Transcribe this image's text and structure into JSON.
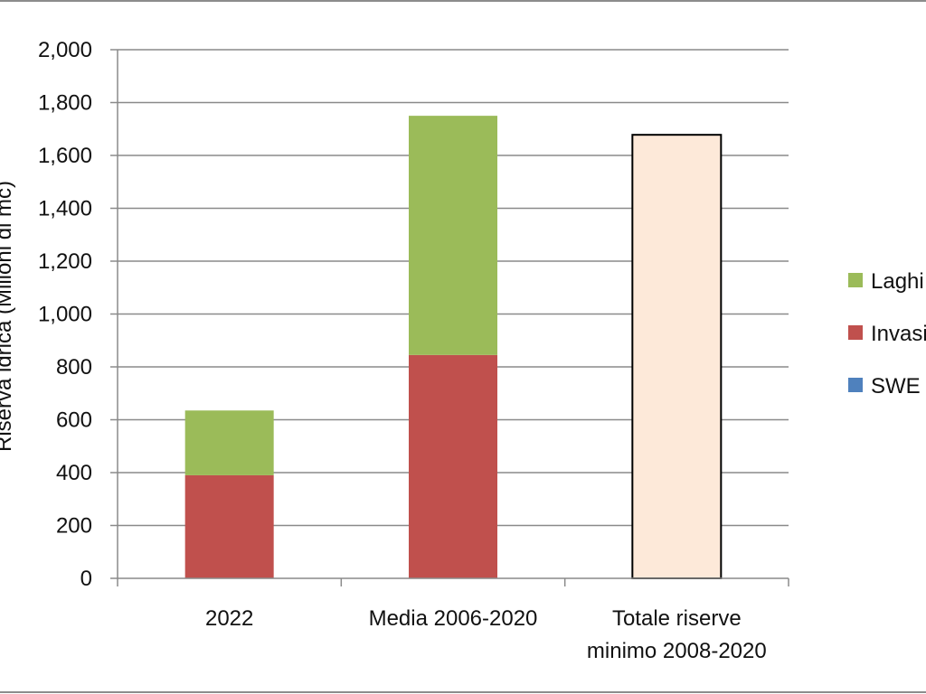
{
  "chart_data": {
    "type": "bar",
    "stacked": true,
    "categories": [
      "2022",
      "Media 2006-2020",
      "Totale riserve\nminimo 2008-2020"
    ],
    "ylabel": "Riserva idrica (Milioni di mc)",
    "ylim": [
      0,
      2000
    ],
    "yticks": [
      0,
      200,
      400,
      600,
      800,
      1000,
      1200,
      1400,
      1600,
      1800,
      2000
    ],
    "ytick_labels": [
      "0",
      "200",
      "400",
      "600",
      "800",
      "1,000",
      "1,200",
      "1,400",
      "1,600",
      "1,800",
      "2,000"
    ],
    "grid": true,
    "legend_position": "right",
    "series": [
      {
        "name": "SWE",
        "color": "#4f81bd",
        "values": [
          0,
          0,
          0
        ]
      },
      {
        "name": "Invasi",
        "color": "#c0504d",
        "values": [
          390,
          845,
          0
        ]
      },
      {
        "name": "Laghi",
        "color": "#9bbb59",
        "values": [
          245,
          905,
          0
        ]
      },
      {
        "name": "",
        "color": "#fde9d9",
        "outline": "#000000",
        "values": [
          0,
          0,
          1678
        ]
      }
    ],
    "legend_order": [
      "Laghi",
      "Invasi",
      "SWE"
    ]
  }
}
